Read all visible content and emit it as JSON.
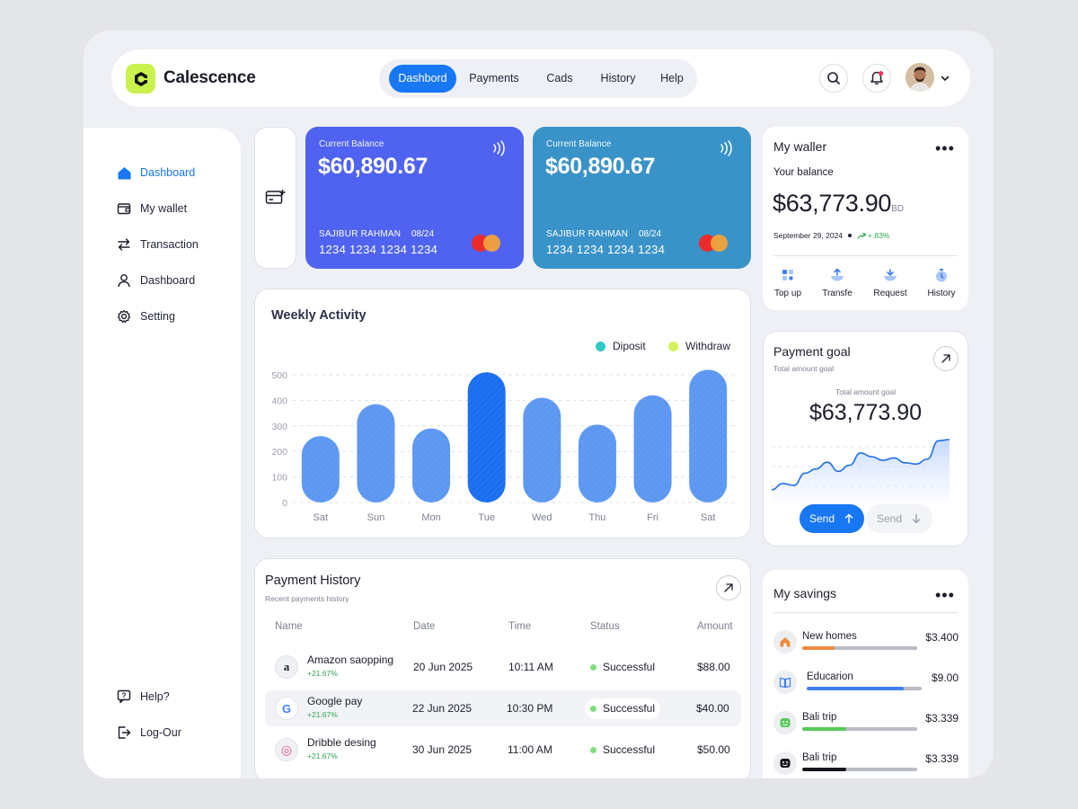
{
  "brand": {
    "name": "Calescence",
    "accent": "#c9f24e"
  },
  "nav": [
    {
      "label": "Dashbord",
      "active": true
    },
    {
      "label": "Payments",
      "active": false
    },
    {
      "label": "Cads",
      "active": false
    },
    {
      "label": "History",
      "active": false
    },
    {
      "label": "Help",
      "active": false
    }
  ],
  "sidebar": {
    "items": [
      {
        "label": "Dashboard",
        "icon": "home-icon",
        "active": true
      },
      {
        "label": "My wallet",
        "icon": "wallet-icon",
        "active": false
      },
      {
        "label": "Transaction",
        "icon": "transfer-arrows-icon",
        "active": false
      },
      {
        "label": "Dashboard",
        "icon": "user-icon",
        "active": false
      },
      {
        "label": "Setting",
        "icon": "gear-icon",
        "active": false
      }
    ],
    "bottom": [
      {
        "label": "Help?",
        "icon": "help-icon"
      },
      {
        "label": "Log-Our",
        "icon": "logout-icon"
      }
    ]
  },
  "cards": [
    {
      "label": "Current Balance",
      "amount": "$60,890.67",
      "holder": "SAJIBUR RAHMAN",
      "expiry": "08/24",
      "number": "1234 1234 1234 1234",
      "color": "#4f63f0"
    },
    {
      "label": "Current Balance",
      "amount": "$60,890.67",
      "holder": "SAJIBUR RAHMAN",
      "expiry": "08/24",
      "number": "1234 1234 1234 1234",
      "color": "#3a93c8"
    }
  ],
  "weekly": {
    "title": "Weekly Activity",
    "legend": [
      {
        "label": "Diposit",
        "color": "#2ec9c4"
      },
      {
        "label": "Withdraw",
        "color": "#d4f25e"
      }
    ]
  },
  "chart_data": {
    "type": "bar",
    "title": "Weekly Activity",
    "categories": [
      "Sat",
      "Sun",
      "Mon",
      "Tue",
      "Wed",
      "Thu",
      "Fri",
      "Sat"
    ],
    "values": [
      260,
      385,
      290,
      510,
      410,
      305,
      420,
      520
    ],
    "highlight_index": 3,
    "yticks": [
      0,
      100,
      200,
      300,
      400,
      500
    ],
    "ylim": [
      0,
      520
    ],
    "grid": true,
    "legend_position": "top-right"
  },
  "history": {
    "title": "Payment History",
    "subtitle": "Recent payments history",
    "columns": [
      "Name",
      "Date",
      "Time",
      "Status",
      "Amount"
    ],
    "rows": [
      {
        "icon": "amazon-logo-icon",
        "glyph": "a",
        "name": "Amazon saopping",
        "change": "+21.67%",
        "date": "20 Jun 2025",
        "time": "10:11 AM",
        "status": "Successful",
        "amount": "$88.00"
      },
      {
        "icon": "google-logo-icon",
        "glyph": "G",
        "name": "Google pay",
        "change": "+21.67%",
        "date": "22 Jun 2025",
        "time": "10:30 PM",
        "status": "Successful",
        "amount": "$40.00"
      },
      {
        "icon": "dribbble-logo-icon",
        "glyph": "◎",
        "name": "Dribble desing",
        "change": "+21.67%",
        "date": "30 Jun 2025",
        "time": "11:00 AM",
        "status": "Successful",
        "amount": "$50.00"
      }
    ]
  },
  "wallet": {
    "title": "My waller",
    "your_balance": "Your balance",
    "balance": "$63,773.90",
    "currency": "BD",
    "date": "September 29, 2024",
    "change": "+.83%",
    "actions": [
      {
        "label": "Top up",
        "icon": "grid-icon"
      },
      {
        "label": "Transfe",
        "icon": "transfer-icon"
      },
      {
        "label": "Request",
        "icon": "request-icon"
      },
      {
        "label": "History",
        "icon": "clock-icon"
      }
    ]
  },
  "goal": {
    "title": "Payment goal",
    "subtitle": "Total amount goal",
    "total_label": "Total amount goal",
    "amount": "$63,773.90",
    "line": [
      0.18,
      0.28,
      0.25,
      0.45,
      0.52,
      0.63,
      0.48,
      0.58,
      0.78,
      0.72,
      0.66,
      0.7,
      0.62,
      0.6,
      0.68,
      0.98,
      1.0
    ],
    "send_primary": "Send",
    "send_secondary": "Send"
  },
  "savings": {
    "title": "My savings",
    "items": [
      {
        "name": "New homes",
        "amount": "$3.400",
        "progress": 0.28,
        "color": "#f08a3e",
        "icon": "house-icon"
      },
      {
        "name": "Educarion",
        "amount": "$9.00",
        "progress": 0.84,
        "color": "#3f7ff0",
        "icon": "book-icon"
      },
      {
        "name": "Bali trip",
        "amount": "$3.339",
        "progress": 0.38,
        "color": "#56c95a",
        "icon": "smile-green-icon"
      },
      {
        "name": "Bali trip",
        "amount": "$3.339",
        "progress": 0.38,
        "color": "#15161c",
        "icon": "smile-dark-icon"
      }
    ]
  }
}
